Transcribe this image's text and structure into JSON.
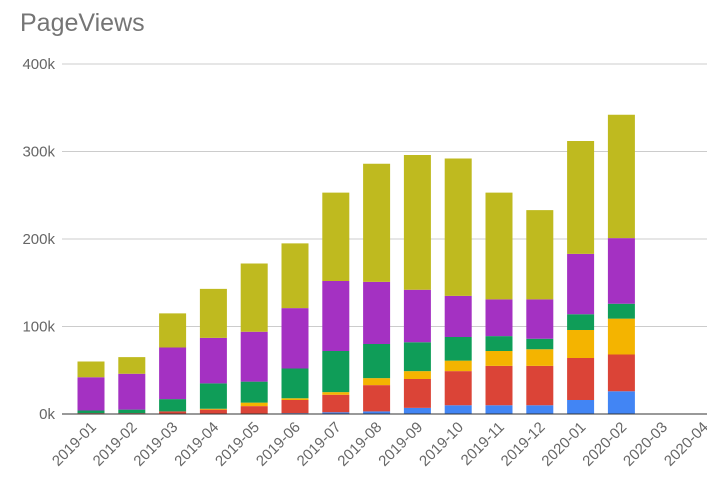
{
  "chart_data": {
    "type": "bar",
    "stacked": true,
    "title": "PageViews",
    "xlabel": "",
    "ylabel": "",
    "ylim": [
      0,
      400000
    ],
    "yticks": [
      0,
      100000,
      200000,
      300000,
      400000
    ],
    "ytick_labels": [
      "0k",
      "100k",
      "200k",
      "300k",
      "400k"
    ],
    "grid": true,
    "categories": [
      "2019-01",
      "2019-02",
      "2019-03",
      "2019-04",
      "2019-05",
      "2019-06",
      "2019-07",
      "2019-08",
      "2019-09",
      "2019-10",
      "2019-11",
      "2019-12",
      "2020-01",
      "2020-02",
      "2020-03",
      "2020-04"
    ],
    "series": [
      {
        "color": "#4285f4",
        "values": [
          0,
          0,
          0,
          0,
          0,
          1000,
          2000,
          3000,
          7000,
          10000,
          10000,
          10000,
          16000,
          26000,
          0,
          0
        ]
      },
      {
        "color": "#db4437",
        "values": [
          1000,
          1000,
          3000,
          5000,
          9000,
          15000,
          20000,
          30000,
          33000,
          39000,
          45000,
          45000,
          48000,
          42000,
          0,
          0
        ]
      },
      {
        "color": "#f4b400",
        "values": [
          0,
          0,
          0,
          1000,
          4000,
          2000,
          3000,
          8000,
          9000,
          12000,
          17000,
          19000,
          32000,
          41000,
          0,
          0
        ]
      },
      {
        "color": "#0f9d58",
        "values": [
          3000,
          4000,
          14000,
          29000,
          24000,
          34000,
          47000,
          39000,
          33000,
          27000,
          17000,
          12000,
          18000,
          17000,
          0,
          0
        ]
      },
      {
        "color": "#a431c2",
        "values": [
          38000,
          41000,
          59000,
          52000,
          57000,
          69000,
          80000,
          71000,
          60000,
          47000,
          42000,
          45000,
          69000,
          75000,
          0,
          0
        ]
      },
      {
        "color": "#bfba1f",
        "values": [
          18000,
          19000,
          39000,
          56000,
          78000,
          74000,
          101000,
          135000,
          154000,
          157000,
          122000,
          102000,
          129000,
          141000,
          0,
          0
        ]
      }
    ]
  }
}
